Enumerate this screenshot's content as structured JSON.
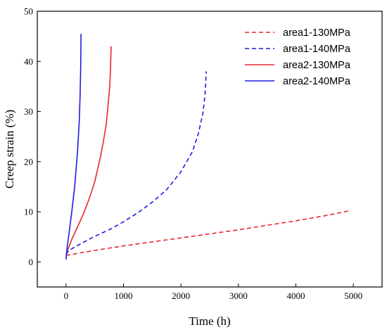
{
  "chart_data": {
    "type": "line",
    "title": "",
    "xlabel": "Time (h)",
    "ylabel": "Creep strain (%)",
    "xlim": [
      -500,
      5500
    ],
    "ylim": [
      -5,
      50
    ],
    "xticks": [
      0,
      1000,
      2000,
      3000,
      4000,
      5000
    ],
    "yticks": [
      0,
      10,
      20,
      30,
      40,
      50
    ],
    "grid": false,
    "legend_position": "top-right",
    "series": [
      {
        "name": "area1-130MPa",
        "color": "#e8262d",
        "dash": "dashed",
        "x": [
          0,
          250,
          500,
          1000,
          1500,
          2000,
          2500,
          3000,
          3500,
          4000,
          4500,
          4930
        ],
        "y": [
          1.3,
          1.8,
          2.3,
          3.2,
          4.0,
          4.8,
          5.6,
          6.4,
          7.3,
          8.2,
          9.2,
          10.2
        ]
      },
      {
        "name": "area1-140MPa",
        "color": "#1c1ce6",
        "dash": "dashed",
        "x": [
          0,
          50,
          250,
          500,
          750,
          1000,
          1250,
          1500,
          1750,
          2000,
          2200,
          2300,
          2380,
          2420,
          2440
        ],
        "y": [
          1.5,
          2.3,
          3.6,
          5.1,
          6.4,
          8.0,
          9.8,
          11.9,
          14.4,
          18.0,
          22.0,
          25.5,
          29.5,
          33.5,
          38.0
        ]
      },
      {
        "name": "area2-130MPa",
        "color": "#e8262d",
        "dash": "solid",
        "x": [
          0,
          50,
          100,
          200,
          300,
          400,
          500,
          600,
          650,
          700,
          730,
          760,
          775,
          785
        ],
        "y": [
          1.5,
          3.0,
          4.5,
          7.0,
          9.5,
          12.5,
          16.0,
          21.0,
          24.0,
          27.5,
          31.0,
          35.0,
          38.5,
          43.0
        ]
      },
      {
        "name": "area2-140MPa",
        "color": "#1c1ce6",
        "dash": "solid",
        "x": [
          0,
          20,
          50,
          100,
          150,
          200,
          230,
          245,
          255,
          262
        ],
        "y": [
          0.5,
          3.0,
          5.5,
          10.0,
          15.0,
          22.0,
          28.0,
          33.0,
          39.0,
          45.5
        ]
      }
    ]
  }
}
